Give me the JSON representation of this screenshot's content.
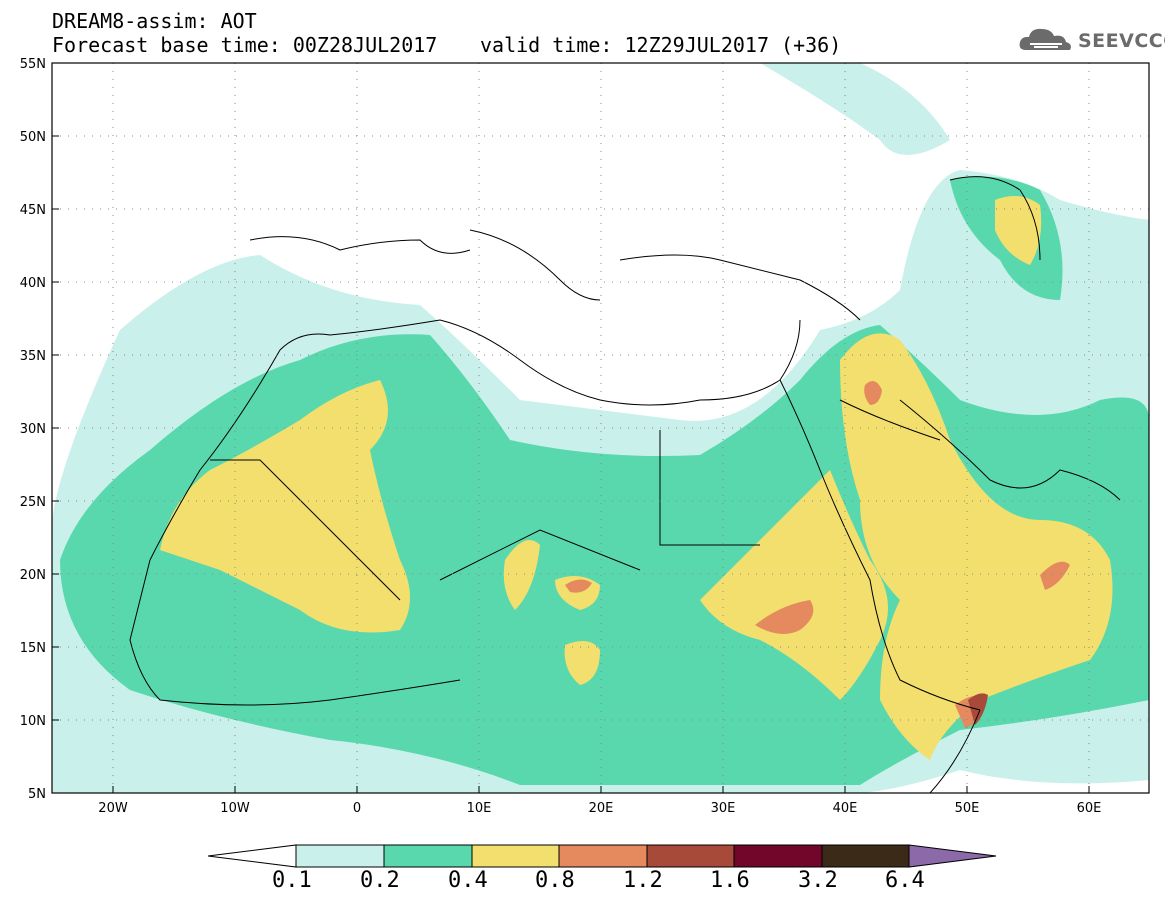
{
  "header": {
    "title": "DREAM8-assim: AOT",
    "base_time": "Forecast base time: 00Z28JUL2017",
    "valid_time": "valid time: 12Z29JUL2017 (+36)"
  },
  "logo": {
    "text": "SEEVCCC",
    "icon": "cloud-icon"
  },
  "map": {
    "lat_labels": [
      "55N",
      "50N",
      "45N",
      "40N",
      "35N",
      "30N",
      "25N",
      "20N",
      "15N",
      "10N",
      "5N"
    ],
    "lon_labels": [
      "20W",
      "10W",
      "0",
      "10E",
      "20E",
      "30E",
      "40E",
      "50E",
      "60E"
    ],
    "lon_range": [
      -25,
      65
    ],
    "lat_range": [
      5,
      55
    ]
  },
  "colorbar": {
    "labels": [
      "0.1",
      "0.2",
      "0.4",
      "0.8",
      "1.2",
      "1.6",
      "3.2",
      "6.4"
    ],
    "colors": [
      "#ffffff",
      "#c9f0ea",
      "#5ad8ad",
      "#f2df6e",
      "#e48a5e",
      "#a84a3a",
      "#72062a",
      "#3b2a18",
      "#8c69a8"
    ]
  },
  "colors": {
    "c01": "#c9f0ea",
    "c02": "#5ad8ad",
    "c04": "#f2df6e",
    "c08": "#e48a5e",
    "c12": "#a84a3a"
  }
}
